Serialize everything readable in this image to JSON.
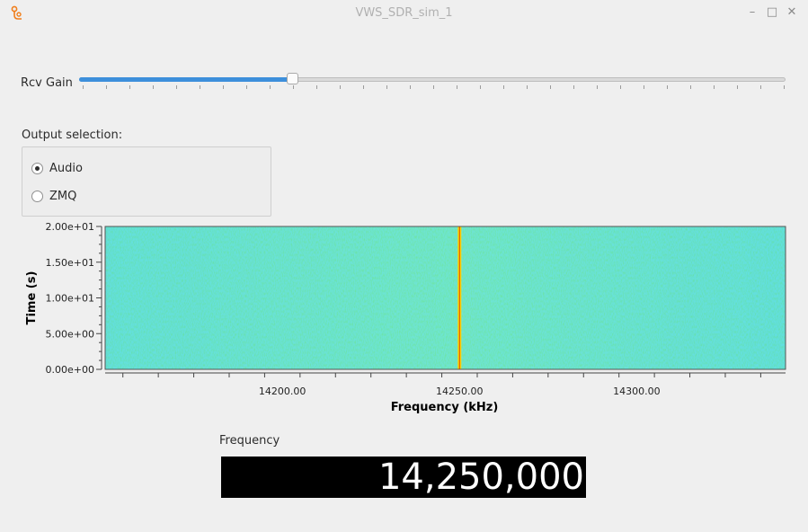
{
  "window": {
    "title": "VWS_SDR_sim_1",
    "icon": "gnuradio-app-icon",
    "controls": [
      "minimize-icon",
      "maximize-icon",
      "close-icon"
    ],
    "minimize_glyph": "–",
    "maximize_glyph": "□",
    "close_glyph": "✕"
  },
  "gain": {
    "label": "Rcv Gain",
    "value_fraction": 0.3
  },
  "output": {
    "label": "Output selection:",
    "options": [
      {
        "label": "Audio",
        "selected": true
      },
      {
        "label": "ZMQ",
        "selected": false
      }
    ]
  },
  "colors": {
    "accent": "#3d8fdb",
    "waterfall_low": "#2fd6c0",
    "waterfall_mid": "#5ff08a",
    "signal": "#ffd400"
  },
  "chart_data": {
    "type": "heatmap",
    "title": "",
    "xlabel": "Frequency (kHz)",
    "ylabel": "Time (s)",
    "x_ticks": [
      "14200.00",
      "14250.00",
      "14300.00"
    ],
    "x_tick_values": [
      14200,
      14250,
      14300
    ],
    "y_ticks": [
      "0.00e+00",
      "5.00e+00",
      "1.00e+01",
      "1.50e+01",
      "2.00e+01"
    ],
    "y_tick_values": [
      0,
      5,
      10,
      15,
      20
    ],
    "xlim": [
      14150,
      14342
    ],
    "ylim": [
      0,
      20
    ],
    "signal_peak_khz": 14250
  },
  "frequency": {
    "label": "Frequency",
    "display": "14,250,000"
  }
}
